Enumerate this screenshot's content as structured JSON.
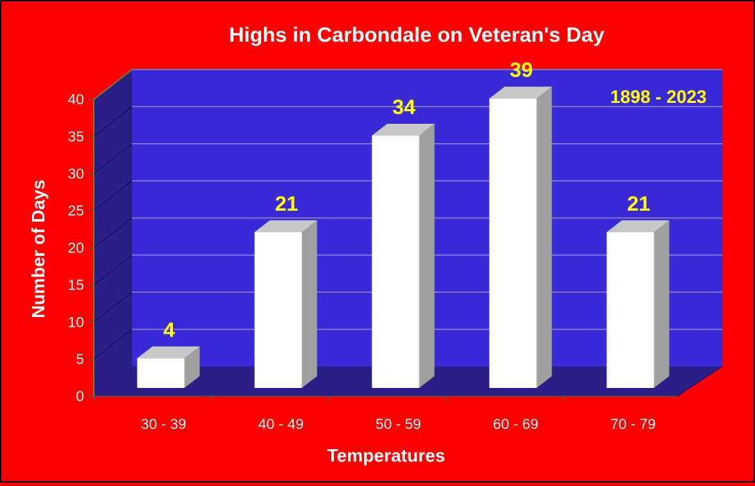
{
  "chart_data": {
    "type": "bar",
    "title": "Highs in Carbondale on Veteran's Day",
    "xlabel": "Temperatures",
    "ylabel": "Number of Days",
    "annotation": "1898 - 2023",
    "categories": [
      "30 - 39",
      "40 - 49",
      "50 - 59",
      "60 - 69",
      "70 - 79"
    ],
    "values": [
      4,
      21,
      34,
      39,
      21
    ],
    "data_labels": [
      "4",
      "21",
      "34",
      "39",
      "21"
    ],
    "ylim": [
      0,
      40
    ],
    "yticks": [
      0,
      5,
      10,
      15,
      20,
      25,
      30,
      35,
      40
    ],
    "grid": true,
    "legend": false,
    "colors": {
      "background": "#ff0000",
      "back_wall": "#3a29d6",
      "side_wall": "#2a1f85",
      "floor": "#2a1f85",
      "gridline": "#8888dd",
      "bar_front": "#ffffff",
      "bar_top": "#c8c8c8",
      "bar_side": "#a0a0a0",
      "value_label": "#ffff00",
      "text": "#ffffff"
    }
  }
}
